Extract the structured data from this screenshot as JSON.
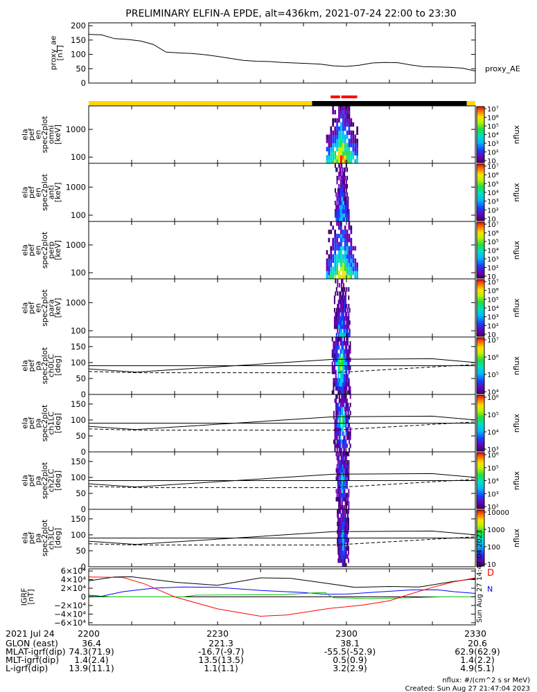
{
  "title": "PRELIMINARY ELFIN-A EPDE, alt=436km, 2021-07-24 22:00 to 23:30",
  "chart_data": [
    {
      "type": "line",
      "ylabel": [
        "proxy_ae",
        "[nT]"
      ],
      "legend": "proxy_AE",
      "ylim": [
        0,
        210
      ],
      "yticks": [
        "200",
        "150",
        "100",
        "50",
        "0"
      ],
      "ytick_values": [
        200,
        150,
        100,
        50,
        0
      ],
      "x_minutes": [
        0,
        3,
        6,
        9,
        12,
        15,
        18,
        21,
        24,
        27,
        30,
        33,
        36,
        39,
        42,
        45,
        48,
        51,
        54,
        57,
        60,
        63,
        66,
        69,
        72,
        75,
        78,
        81,
        84,
        87,
        90
      ],
      "values": [
        170,
        168,
        155,
        152,
        147,
        135,
        108,
        105,
        103,
        99,
        93,
        86,
        79,
        76,
        75,
        72,
        70,
        68,
        66,
        60,
        58,
        62,
        70,
        72,
        71,
        63,
        57,
        56,
        55,
        52,
        42
      ],
      "series": [
        {
          "name": "proxy_AE"
        }
      ]
    },
    {
      "type": "status-bar",
      "segments": [
        {
          "from": 0,
          "to": 52,
          "color": "#ffd600"
        },
        {
          "from": 52,
          "to": 88,
          "color": "#000000"
        },
        {
          "from": 88,
          "to": 90,
          "color": "#ffd600"
        }
      ],
      "markers": [
        {
          "from": 56.3,
          "to": 58.5,
          "color": "#ff0000"
        },
        {
          "from": 58.8,
          "to": 62.5,
          "color": "#ff0000"
        }
      ]
    },
    {
      "type": "heatmap",
      "scale": "log",
      "ylabel": [
        "ela",
        "pef",
        "en",
        "spec2plot",
        "omni",
        "[keV]"
      ],
      "yticks": [
        "1000",
        "100"
      ],
      "ytick_values": [
        1000,
        100
      ],
      "zlabel": "nflux",
      "zticks": [
        "10⁷",
        "10⁶",
        "10⁵",
        "10⁴",
        "10³",
        "10²",
        "10"
      ],
      "activity": {
        "center": 59.0,
        "width": 2.2,
        "intensity": 1.0
      }
    },
    {
      "type": "heatmap",
      "scale": "log",
      "ylabel": [
        "ela",
        "pef",
        "en",
        "spec2plot",
        "anti",
        "[keV]"
      ],
      "yticks": [
        "1000",
        "100"
      ],
      "ytick_values": [
        1000,
        100
      ],
      "zlabel": "nflux",
      "zticks": [
        "10⁷",
        "10⁶",
        "10⁵",
        "10⁴",
        "10³",
        "10²",
        "10"
      ],
      "activity": {
        "center": 59.0,
        "width": 1.0,
        "intensity": 0.55
      }
    },
    {
      "type": "heatmap",
      "scale": "log",
      "ylabel": [
        "ela",
        "pef",
        "en",
        "spec2plot",
        "perp",
        "[keV]"
      ],
      "yticks": [
        "1000",
        "100"
      ],
      "ytick_values": [
        1000,
        100
      ],
      "zlabel": "nflux",
      "zticks": [
        "10⁷",
        "10⁶",
        "10⁵",
        "10⁴",
        "10³",
        "10²",
        "10"
      ],
      "activity": {
        "center": 59.0,
        "width": 2.2,
        "intensity": 0.95
      }
    },
    {
      "type": "heatmap",
      "scale": "log",
      "ylabel": [
        "ela",
        "pef",
        "en",
        "spec2plot",
        "para",
        "[keV]"
      ],
      "yticks": [
        "1000",
        "100"
      ],
      "ytick_values": [
        1000,
        100
      ],
      "zlabel": "nflux",
      "zticks": [
        "10⁷",
        "10⁶",
        "10⁵",
        "10⁴",
        "10³",
        "10²",
        "10"
      ],
      "activity": {
        "center": 59.0,
        "width": 1.1,
        "intensity": 0.5
      }
    },
    {
      "type": "heatmap",
      "scale": "linear",
      "ylabel": [
        "ela",
        "pef",
        "pa",
        "spec2plot",
        "ch0LC",
        "[deg]"
      ],
      "ylim": [
        0,
        180
      ],
      "yticks": [
        "150",
        "100",
        "50",
        "0"
      ],
      "ytick_values": [
        150,
        100,
        50,
        0
      ],
      "zlabel": "nflux",
      "zticks": [
        "10⁷",
        "10⁶",
        "10⁵",
        "10⁴"
      ],
      "activity": {
        "center": 58.8,
        "width": 1.3,
        "intensity": 0.85
      },
      "lc_line": [
        [
          0,
          80
        ],
        [
          11,
          70
        ],
        [
          57,
          110
        ],
        [
          80,
          112
        ],
        [
          90,
          100
        ]
      ],
      "alc_line": [
        [
          0,
          72
        ],
        [
          11,
          68
        ],
        [
          57,
          68
        ],
        [
          80,
          86
        ],
        [
          90,
          94
        ]
      ],
      "ref_line": 90
    },
    {
      "type": "heatmap",
      "scale": "linear",
      "ylabel": [
        "ela",
        "pef",
        "pa",
        "spec2plot",
        "ch1LC",
        "[deg]"
      ],
      "ylim": [
        0,
        180
      ],
      "yticks": [
        "150",
        "100",
        "50",
        "0"
      ],
      "ytick_values": [
        150,
        100,
        50,
        0
      ],
      "zlabel": "nflux",
      "zticks": [
        "10⁶",
        "10⁵",
        "10⁴",
        "10³"
      ],
      "activity": {
        "center": 59.0,
        "width": 1.2,
        "intensity": 0.7
      },
      "lc_line": [
        [
          0,
          80
        ],
        [
          11,
          70
        ],
        [
          57,
          110
        ],
        [
          80,
          112
        ],
        [
          90,
          100
        ]
      ],
      "alc_line": [
        [
          0,
          72
        ],
        [
          11,
          68
        ],
        [
          57,
          68
        ],
        [
          80,
          86
        ],
        [
          90,
          94
        ]
      ],
      "ref_line": 90
    },
    {
      "type": "heatmap",
      "scale": "linear",
      "ylabel": [
        "ela",
        "pef",
        "pa",
        "spec2plot",
        "ch2LC",
        "[deg]"
      ],
      "ylim": [
        0,
        180
      ],
      "yticks": [
        "150",
        "100",
        "50",
        "0"
      ],
      "ytick_values": [
        150,
        100,
        50,
        0
      ],
      "zlabel": "nflux",
      "zticks": [
        "10⁶",
        "10⁵",
        "10⁴",
        "10³",
        "10²"
      ],
      "activity": {
        "center": 59.1,
        "width": 0.9,
        "intensity": 0.6
      },
      "lc_line": [
        [
          0,
          80
        ],
        [
          11,
          70
        ],
        [
          57,
          110
        ],
        [
          80,
          112
        ],
        [
          90,
          100
        ]
      ],
      "alc_line": [
        [
          0,
          72
        ],
        [
          11,
          68
        ],
        [
          57,
          68
        ],
        [
          80,
          86
        ],
        [
          90,
          94
        ]
      ],
      "ref_line": 90
    },
    {
      "type": "heatmap",
      "scale": "linear",
      "ylabel": [
        "ela",
        "pef",
        "pa",
        "spec2plot",
        "ch3LC",
        "[deg]"
      ],
      "ylim": [
        0,
        180
      ],
      "yticks": [
        "150",
        "100",
        "50",
        "0"
      ],
      "ytick_values": [
        150,
        100,
        50,
        0
      ],
      "zlabel": "nflux",
      "zticks": [
        "10000",
        "1000",
        "100",
        "10"
      ],
      "activity": {
        "center": 59.2,
        "width": 0.8,
        "intensity": 0.55
      },
      "lc_line": [
        [
          0,
          80
        ],
        [
          11,
          70
        ],
        [
          57,
          110
        ],
        [
          80,
          112
        ],
        [
          90,
          100
        ]
      ],
      "alc_line": [
        [
          0,
          72
        ],
        [
          11,
          68
        ],
        [
          57,
          68
        ],
        [
          80,
          86
        ],
        [
          90,
          94
        ]
      ],
      "ref_line": 90
    },
    {
      "type": "line",
      "ylabel": [
        "IGRF",
        "[nT]"
      ],
      "ylim": [
        -65000,
        65000
      ],
      "yticks": [
        "6×10⁴",
        "4×10⁴",
        "2×10⁴",
        "0",
        "−2×10⁴",
        "−4×10⁴",
        "−6×10⁴"
      ],
      "ytick_values": [
        60000,
        40000,
        20000,
        0,
        -20000,
        -40000,
        -60000
      ],
      "series": [
        {
          "name": "D",
          "color": "#000000",
          "points": [
            [
              0,
              37000
            ],
            [
              6,
              46000
            ],
            [
              10,
              46500
            ],
            [
              20,
              34000
            ],
            [
              30,
              27000
            ],
            [
              40,
              44000
            ],
            [
              47,
              43000
            ],
            [
              55,
              32000
            ],
            [
              62,
              22000
            ],
            [
              70,
              24000
            ],
            [
              77,
              23000
            ],
            [
              85,
              36000
            ],
            [
              90,
              42000
            ]
          ]
        },
        {
          "name": "N",
          "color": "#0000ff",
          "points": [
            [
              0,
              4000
            ],
            [
              3,
              1500
            ],
            [
              8,
              12000
            ],
            [
              15,
              20000
            ],
            [
              22,
              23000
            ],
            [
              30,
              22000
            ],
            [
              40,
              15000
            ],
            [
              50,
              10000
            ],
            [
              55,
              6000
            ],
            [
              60,
              6500
            ],
            [
              67,
              11000
            ],
            [
              75,
              16000
            ],
            [
              81,
              16500
            ],
            [
              85,
              12000
            ],
            [
              90,
              8000
            ]
          ]
        },
        {
          "name": "",
          "color": "#00c000",
          "points": [
            [
              0,
              1000
            ],
            [
              4,
              800
            ],
            [
              5,
              0
            ],
            [
              15,
              0
            ],
            [
              22,
              0
            ],
            [
              25,
              4000
            ],
            [
              45,
              5000
            ],
            [
              52,
              9000
            ],
            [
              55,
              10000
            ],
            [
              56,
              3000
            ],
            [
              57,
              -2000
            ],
            [
              65,
              -4000
            ],
            [
              75,
              -2000
            ],
            [
              82,
              0
            ],
            [
              90,
              0
            ]
          ]
        },
        {
          "name": "",
          "color": "#ff0000",
          "points": [
            [
              0,
              46000
            ],
            [
              8,
              45000
            ],
            [
              13,
              30000
            ],
            [
              20,
              0
            ],
            [
              30,
              -28000
            ],
            [
              40,
              -45000
            ],
            [
              46,
              -42000
            ],
            [
              56,
              -27000
            ],
            [
              64,
              -19000
            ],
            [
              70,
              -9000
            ],
            [
              75,
              7000
            ],
            [
              80,
              22000
            ],
            [
              85,
              35000
            ],
            [
              90,
              44000
            ]
          ]
        }
      ],
      "legend": [
        "D",
        "N"
      ],
      "side_note": "Sun Aug 27 14:47:04 2023"
    }
  ],
  "time_axis": {
    "row_label": "2021 Jul 24",
    "ticks": [
      {
        "minute": 0,
        "label": "2200"
      },
      {
        "minute": 30,
        "label": "2230"
      },
      {
        "minute": 60,
        "label": "2300"
      },
      {
        "minute": 90,
        "label": "2330"
      }
    ]
  },
  "ephemeris": [
    {
      "label": "GLON (east)",
      "values": [
        "36.4",
        "221.3",
        "38.1",
        "20.6"
      ]
    },
    {
      "label": "MLAT-igrf(dip)",
      "values": [
        "74.3(71.9)",
        "-16.7(-9.7)",
        "-55.5(-52.9)",
        "62.9(62.9)"
      ]
    },
    {
      "label": "MLT-igrf(dip)",
      "values": [
        "1.4(2.4)",
        "13.5(13.5)",
        "0.5(0.9)",
        "1.4(2.2)"
      ]
    },
    {
      "label": "L-igrf(dip)",
      "values": [
        "13.9(11.1)",
        "1.1(1.1)",
        "3.2(2.9)",
        "4.9(5.1)"
      ]
    }
  ],
  "footer": {
    "units": "nflux: #/(cm^2 s sr MeV)",
    "created": "Created: Sun Aug 27 21:47:04 2023"
  }
}
